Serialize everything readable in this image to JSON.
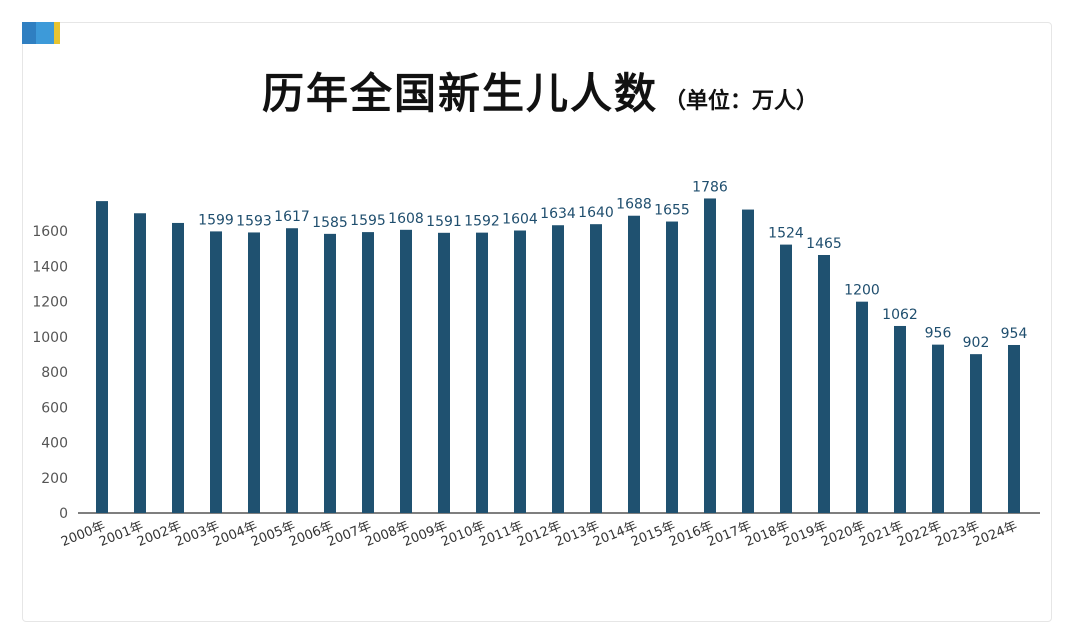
{
  "title": "历年全国新生儿人数",
  "unit": "（单位：万人）",
  "colors": {
    "bar": "#1f5170",
    "axis": "#333333",
    "label": "#1f4e6e"
  },
  "chart_data": {
    "type": "bar",
    "title": "历年全国新生儿人数",
    "subtitle": "（单位：万人）",
    "xlabel": "",
    "ylabel": "",
    "ylim": [
      0,
      1800
    ],
    "yticks": [
      0,
      200,
      400,
      600,
      800,
      1000,
      1200,
      1400,
      1600
    ],
    "grid": false,
    "categories": [
      "2000年",
      "2001年",
      "2002年",
      "2003年",
      "2004年",
      "2005年",
      "2006年",
      "2007年",
      "2008年",
      "2009年",
      "2010年",
      "2011年",
      "2012年",
      "2013年",
      "2014年",
      "2015年",
      "2016年",
      "2017年",
      "2018年",
      "2019年",
      "2020年",
      "2021年",
      "2022年",
      "2023年",
      "2024年"
    ],
    "values": [
      1771,
      1702,
      1647,
      1599,
      1593,
      1617,
      1585,
      1595,
      1608,
      1591,
      1592,
      1604,
      1634,
      1640,
      1688,
      1655,
      1786,
      1723,
      1524,
      1465,
      1200,
      1062,
      956,
      902,
      954
    ],
    "data_labels": [
      "",
      "",
      "",
      "1599",
      "1593",
      "1617",
      "1585",
      "1595",
      "1608",
      "1591",
      "1592",
      "1604",
      "1634",
      "1640",
      "1688",
      "1655",
      "1786",
      "",
      "1524",
      "1465",
      "1200",
      "1062",
      "956",
      "902",
      "954"
    ]
  }
}
